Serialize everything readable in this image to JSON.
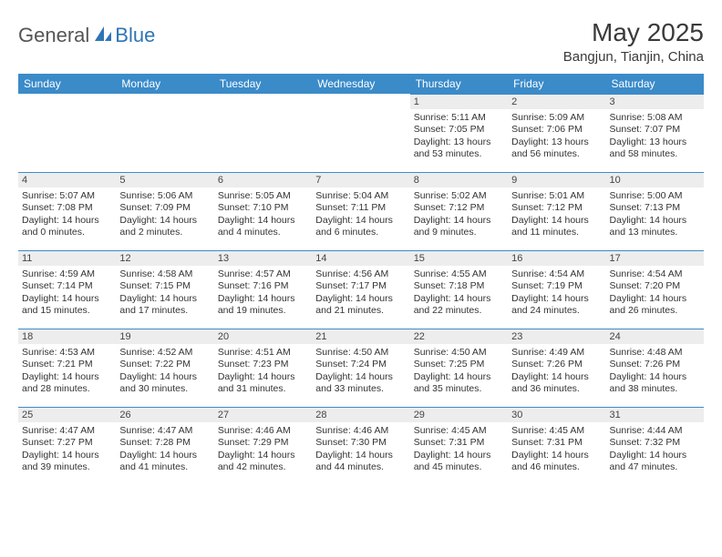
{
  "brand": {
    "general": "General",
    "blue": "Blue"
  },
  "title": "May 2025",
  "location": "Bangjun, Tianjin, China",
  "colors": {
    "header_bg": "#3b8bc9",
    "header_text": "#ffffff",
    "daynum_bg": "#ededed",
    "row_divider": "#3b8bc9",
    "text": "#333333",
    "logo_gray": "#555555",
    "logo_blue": "#2e75b6"
  },
  "typography": {
    "month_title_size_pt": 21,
    "location_size_pt": 11,
    "weekday_size_pt": 9,
    "body_size_pt": 8
  },
  "weekdays": [
    "Sunday",
    "Monday",
    "Tuesday",
    "Wednesday",
    "Thursday",
    "Friday",
    "Saturday"
  ],
  "weeks": [
    [
      null,
      null,
      null,
      null,
      {
        "n": "1",
        "sr": "Sunrise: 5:11 AM",
        "ss": "Sunset: 7:05 PM",
        "dl": "Daylight: 13 hours and 53 minutes."
      },
      {
        "n": "2",
        "sr": "Sunrise: 5:09 AM",
        "ss": "Sunset: 7:06 PM",
        "dl": "Daylight: 13 hours and 56 minutes."
      },
      {
        "n": "3",
        "sr": "Sunrise: 5:08 AM",
        "ss": "Sunset: 7:07 PM",
        "dl": "Daylight: 13 hours and 58 minutes."
      }
    ],
    [
      {
        "n": "4",
        "sr": "Sunrise: 5:07 AM",
        "ss": "Sunset: 7:08 PM",
        "dl": "Daylight: 14 hours and 0 minutes."
      },
      {
        "n": "5",
        "sr": "Sunrise: 5:06 AM",
        "ss": "Sunset: 7:09 PM",
        "dl": "Daylight: 14 hours and 2 minutes."
      },
      {
        "n": "6",
        "sr": "Sunrise: 5:05 AM",
        "ss": "Sunset: 7:10 PM",
        "dl": "Daylight: 14 hours and 4 minutes."
      },
      {
        "n": "7",
        "sr": "Sunrise: 5:04 AM",
        "ss": "Sunset: 7:11 PM",
        "dl": "Daylight: 14 hours and 6 minutes."
      },
      {
        "n": "8",
        "sr": "Sunrise: 5:02 AM",
        "ss": "Sunset: 7:12 PM",
        "dl": "Daylight: 14 hours and 9 minutes."
      },
      {
        "n": "9",
        "sr": "Sunrise: 5:01 AM",
        "ss": "Sunset: 7:12 PM",
        "dl": "Daylight: 14 hours and 11 minutes."
      },
      {
        "n": "10",
        "sr": "Sunrise: 5:00 AM",
        "ss": "Sunset: 7:13 PM",
        "dl": "Daylight: 14 hours and 13 minutes."
      }
    ],
    [
      {
        "n": "11",
        "sr": "Sunrise: 4:59 AM",
        "ss": "Sunset: 7:14 PM",
        "dl": "Daylight: 14 hours and 15 minutes."
      },
      {
        "n": "12",
        "sr": "Sunrise: 4:58 AM",
        "ss": "Sunset: 7:15 PM",
        "dl": "Daylight: 14 hours and 17 minutes."
      },
      {
        "n": "13",
        "sr": "Sunrise: 4:57 AM",
        "ss": "Sunset: 7:16 PM",
        "dl": "Daylight: 14 hours and 19 minutes."
      },
      {
        "n": "14",
        "sr": "Sunrise: 4:56 AM",
        "ss": "Sunset: 7:17 PM",
        "dl": "Daylight: 14 hours and 21 minutes."
      },
      {
        "n": "15",
        "sr": "Sunrise: 4:55 AM",
        "ss": "Sunset: 7:18 PM",
        "dl": "Daylight: 14 hours and 22 minutes."
      },
      {
        "n": "16",
        "sr": "Sunrise: 4:54 AM",
        "ss": "Sunset: 7:19 PM",
        "dl": "Daylight: 14 hours and 24 minutes."
      },
      {
        "n": "17",
        "sr": "Sunrise: 4:54 AM",
        "ss": "Sunset: 7:20 PM",
        "dl": "Daylight: 14 hours and 26 minutes."
      }
    ],
    [
      {
        "n": "18",
        "sr": "Sunrise: 4:53 AM",
        "ss": "Sunset: 7:21 PM",
        "dl": "Daylight: 14 hours and 28 minutes."
      },
      {
        "n": "19",
        "sr": "Sunrise: 4:52 AM",
        "ss": "Sunset: 7:22 PM",
        "dl": "Daylight: 14 hours and 30 minutes."
      },
      {
        "n": "20",
        "sr": "Sunrise: 4:51 AM",
        "ss": "Sunset: 7:23 PM",
        "dl": "Daylight: 14 hours and 31 minutes."
      },
      {
        "n": "21",
        "sr": "Sunrise: 4:50 AM",
        "ss": "Sunset: 7:24 PM",
        "dl": "Daylight: 14 hours and 33 minutes."
      },
      {
        "n": "22",
        "sr": "Sunrise: 4:50 AM",
        "ss": "Sunset: 7:25 PM",
        "dl": "Daylight: 14 hours and 35 minutes."
      },
      {
        "n": "23",
        "sr": "Sunrise: 4:49 AM",
        "ss": "Sunset: 7:26 PM",
        "dl": "Daylight: 14 hours and 36 minutes."
      },
      {
        "n": "24",
        "sr": "Sunrise: 4:48 AM",
        "ss": "Sunset: 7:26 PM",
        "dl": "Daylight: 14 hours and 38 minutes."
      }
    ],
    [
      {
        "n": "25",
        "sr": "Sunrise: 4:47 AM",
        "ss": "Sunset: 7:27 PM",
        "dl": "Daylight: 14 hours and 39 minutes."
      },
      {
        "n": "26",
        "sr": "Sunrise: 4:47 AM",
        "ss": "Sunset: 7:28 PM",
        "dl": "Daylight: 14 hours and 41 minutes."
      },
      {
        "n": "27",
        "sr": "Sunrise: 4:46 AM",
        "ss": "Sunset: 7:29 PM",
        "dl": "Daylight: 14 hours and 42 minutes."
      },
      {
        "n": "28",
        "sr": "Sunrise: 4:46 AM",
        "ss": "Sunset: 7:30 PM",
        "dl": "Daylight: 14 hours and 44 minutes."
      },
      {
        "n": "29",
        "sr": "Sunrise: 4:45 AM",
        "ss": "Sunset: 7:31 PM",
        "dl": "Daylight: 14 hours and 45 minutes."
      },
      {
        "n": "30",
        "sr": "Sunrise: 4:45 AM",
        "ss": "Sunset: 7:31 PM",
        "dl": "Daylight: 14 hours and 46 minutes."
      },
      {
        "n": "31",
        "sr": "Sunrise: 4:44 AM",
        "ss": "Sunset: 7:32 PM",
        "dl": "Daylight: 14 hours and 47 minutes."
      }
    ]
  ]
}
